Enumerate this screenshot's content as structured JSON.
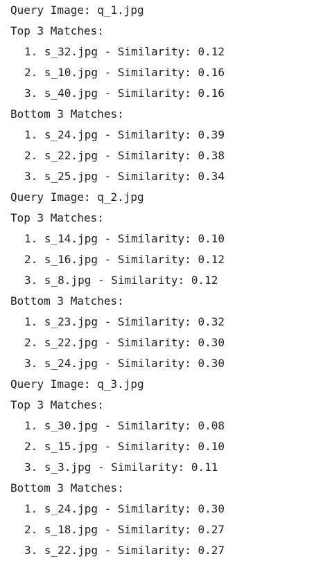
{
  "output": {
    "q1_header": "Query Image: q_1.jpg",
    "q1_top_header": "Top 3 Matches:",
    "q1_top": [
      "1. s_32.jpg - Similarity: 0.12",
      "2. s_10.jpg - Similarity: 0.16",
      "3. s_40.jpg - Similarity: 0.16"
    ],
    "q1_bottom_header": "Bottom 3 Matches:",
    "q1_bottom": [
      "1. s_24.jpg - Similarity: 0.39",
      "2. s_22.jpg - Similarity: 0.38",
      "3. s_25.jpg - Similarity: 0.34"
    ],
    "q2_header": "Query Image: q_2.jpg",
    "q2_top_header": "Top 3 Matches:",
    "q2_top": [
      "1. s_14.jpg - Similarity: 0.10",
      "2. s_16.jpg - Similarity: 0.12",
      "3. s_8.jpg - Similarity: 0.12"
    ],
    "q2_bottom_header": "Bottom 3 Matches:",
    "q2_bottom": [
      "1. s_23.jpg - Similarity: 0.32",
      "2. s_22.jpg - Similarity: 0.30",
      "3. s_24.jpg - Similarity: 0.30"
    ],
    "q3_header": "Query Image: q_3.jpg",
    "q3_top_header": "Top 3 Matches:",
    "q3_top": [
      "1. s_30.jpg - Similarity: 0.08",
      "2. s_15.jpg - Similarity: 0.10",
      "3. s_3.jpg - Similarity: 0.11"
    ],
    "q3_bottom_header": "Bottom 3 Matches:",
    "q3_bottom": [
      "1. s_24.jpg - Similarity: 0.30",
      "2. s_18.jpg - Similarity: 0.27",
      "3. s_22.jpg - Similarity: 0.27"
    ]
  }
}
